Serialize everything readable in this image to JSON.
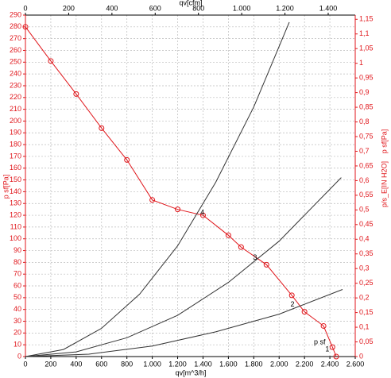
{
  "chart_data": {
    "type": "line",
    "xlabel": "qv[m^3/h]",
    "x2label": "qv[cfm]",
    "ylabel": "p sf[Pa]",
    "y2label": "p/s_E[IN H2O]",
    "y2label_extra": "p sf[Pa]",
    "xlim": [
      0,
      2600
    ],
    "x2lim": [
      0,
      1525
    ],
    "ylim": [
      0,
      290
    ],
    "y2lim": [
      0,
      1.1643
    ],
    "xticks": [
      0,
      200,
      400,
      600,
      800,
      {
        "value": 1000,
        "label": "1.000"
      },
      {
        "value": 1200,
        "label": "1.200"
      },
      {
        "value": 1400,
        "label": "1.400"
      },
      {
        "value": 1600,
        "label": "1.600"
      },
      {
        "value": 1800,
        "label": "1.800"
      },
      {
        "value": 2000,
        "label": "2.000"
      },
      {
        "value": 2200,
        "label": "2.200"
      },
      {
        "value": 2400,
        "label": "2.400"
      },
      {
        "value": 2600,
        "label": "2.600"
      }
    ],
    "x2ticks": [
      0,
      200,
      400,
      600,
      800,
      {
        "value": 1000,
        "label": "1.000"
      },
      {
        "value": 1200,
        "label": "1.200"
      },
      {
        "value": 1400,
        "label": "1.400"
      }
    ],
    "yticks": [
      0,
      10,
      20,
      30,
      40,
      50,
      60,
      70,
      80,
      90,
      100,
      110,
      120,
      130,
      140,
      150,
      160,
      170,
      180,
      190,
      200,
      210,
      220,
      230,
      240,
      250,
      260,
      270,
      280,
      290
    ],
    "y2ticks": [
      0,
      {
        "value": 0.05,
        "label": "0,05"
      },
      {
        "value": 0.1,
        "label": "0,1"
      },
      {
        "value": 0.15,
        "label": "0,15"
      },
      {
        "value": 0.2,
        "label": "0,2"
      },
      {
        "value": 0.25,
        "label": "0,25"
      },
      {
        "value": 0.3,
        "label": "0,3"
      },
      {
        "value": 0.35,
        "label": "0,35"
      },
      {
        "value": 0.4,
        "label": "0,4"
      },
      {
        "value": 0.45,
        "label": "0,45"
      },
      {
        "value": 0.5,
        "label": "0,5"
      },
      {
        "value": 0.55,
        "label": "0,55"
      },
      {
        "value": 0.6,
        "label": "0,6"
      },
      {
        "value": 0.65,
        "label": "0,65"
      },
      {
        "value": 0.7,
        "label": "0,7"
      },
      {
        "value": 0.75,
        "label": "0,75"
      },
      {
        "value": 0.8,
        "label": "0,8"
      },
      {
        "value": 0.85,
        "label": "0,85"
      },
      {
        "value": 0.9,
        "label": "0,9"
      },
      {
        "value": 0.95,
        "label": "0,95"
      },
      1,
      {
        "value": 1.05,
        "label": "1,05"
      },
      {
        "value": 1.1,
        "label": "1,1"
      },
      {
        "value": 1.15,
        "label": "1,15"
      }
    ],
    "grid": true,
    "series": [
      {
        "color": "#e0161b",
        "markers": true,
        "x": [
          0,
          200,
          400,
          600,
          800,
          1000,
          1200,
          1400,
          1600,
          1700,
          1900,
          2100,
          2200,
          2350,
          2420,
          2450
        ],
        "values": [
          280,
          251,
          223,
          194,
          167,
          133,
          125,
          120,
          103,
          93,
          78,
          52,
          38,
          26,
          8,
          0
        ]
      },
      {
        "color": "#333333",
        "markers": false,
        "x": [
          0,
          300,
          600,
          900,
          1200,
          1500,
          1800,
          2080
        ],
        "values": [
          0,
          6,
          24,
          53,
          94,
          148,
          212,
          284
        ]
      },
      {
        "color": "#333333",
        "markers": false,
        "x": [
          0,
          400,
          800,
          1200,
          1600,
          2000,
          2490
        ],
        "values": [
          0,
          4,
          16,
          35,
          63,
          98,
          152
        ]
      },
      {
        "color": "#333333",
        "markers": false,
        "x": [
          0,
          500,
          1000,
          1500,
          2000,
          2500
        ],
        "values": [
          0,
          2,
          9,
          21,
          36,
          57
        ]
      }
    ],
    "annotations": [
      {
        "text": "4",
        "x": 1395,
        "y": 122
      },
      {
        "text": "3",
        "x": 1810,
        "y": 84
      },
      {
        "text": "2",
        "x": 2105,
        "y": 44
      },
      {
        "text": "1",
        "x": 2380,
        "y": 6
      },
      {
        "text": "p sf",
        "x": 2320,
        "y": 12
      }
    ]
  }
}
